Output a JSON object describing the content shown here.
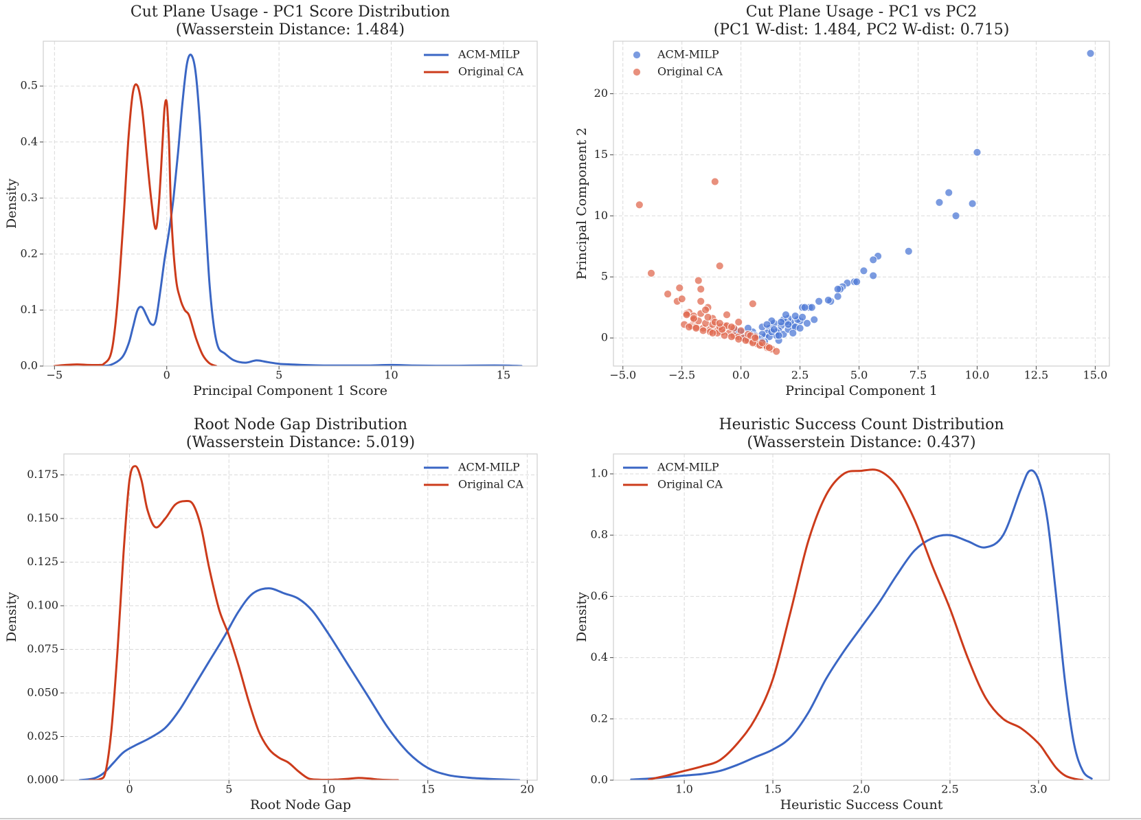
{
  "chart_data": [
    {
      "type": "line",
      "title": "Cut Plane Usage - PC1 Score Distribution",
      "subtitle": "(Wasserstein Distance: 1.484)",
      "xlabel": "Principal Component 1 Score",
      "ylabel": "Density",
      "xlim": [
        -5.5,
        16.5
      ],
      "ylim": [
        0,
        0.58
      ],
      "xticks": [
        -5,
        0,
        5,
        10,
        15
      ],
      "xtick_labels": [
        "−5",
        "0",
        "5",
        "10",
        "15"
      ],
      "yticks": [
        0,
        0.1,
        0.2,
        0.3,
        0.4,
        0.5
      ],
      "ytick_labels": [
        "0.0",
        "0.1",
        "0.2",
        "0.3",
        "0.4",
        "0.5"
      ],
      "legend_position": "top-right",
      "series": [
        {
          "name": "ACM-MILP",
          "color": "#3a66c4",
          "x": [
            -3,
            -2.5,
            -2,
            -1.7,
            -1.5,
            -1.3,
            -1.1,
            -0.9,
            -0.7,
            -0.5,
            -0.3,
            -0.1,
            0.1,
            0.3,
            0.5,
            0.7,
            0.9,
            1.1,
            1.3,
            1.5,
            1.7,
            1.9,
            2.1,
            2.3,
            2.6,
            3.0,
            3.5,
            4.0,
            4.5,
            5.0,
            5.5,
            6.0,
            7.0,
            8.0,
            9.0,
            10.0,
            11.0,
            12.0,
            13.0,
            14.0,
            15.0,
            15.8
          ],
          "y": [
            0,
            0.002,
            0.015,
            0.04,
            0.07,
            0.1,
            0.105,
            0.09,
            0.075,
            0.08,
            0.13,
            0.19,
            0.24,
            0.3,
            0.38,
            0.47,
            0.54,
            0.555,
            0.52,
            0.42,
            0.28,
            0.15,
            0.07,
            0.033,
            0.022,
            0.01,
            0.006,
            0.01,
            0.007,
            0.004,
            0.003,
            0.002,
            0.001,
            0.001,
            0.001,
            0.002,
            0.001,
            0.0005,
            0.0005,
            0.001,
            0.001,
            0
          ]
        },
        {
          "name": "Original CA",
          "color": "#cc3b1b",
          "x": [
            -5,
            -4.5,
            -4,
            -3.5,
            -3,
            -2.8,
            -2.5,
            -2.3,
            -2.1,
            -1.9,
            -1.7,
            -1.5,
            -1.3,
            -1.1,
            -0.9,
            -0.7,
            -0.5,
            -0.35,
            -0.2,
            -0.1,
            0,
            0.1,
            0.2,
            0.4,
            0.6,
            0.8,
            1.0,
            1.3,
            1.6,
            1.9,
            2.2
          ],
          "y": [
            0,
            0.002,
            0.003,
            0.002,
            0.002,
            0.004,
            0.02,
            0.07,
            0.16,
            0.28,
            0.41,
            0.49,
            0.5,
            0.46,
            0.38,
            0.3,
            0.245,
            0.29,
            0.39,
            0.46,
            0.47,
            0.4,
            0.27,
            0.16,
            0.12,
            0.1,
            0.09,
            0.05,
            0.02,
            0.005,
            0
          ]
        }
      ]
    },
    {
      "type": "scatter",
      "title": "Cut Plane Usage - PC1 vs PC2",
      "subtitle": "(PC1 W-dist: 1.484, PC2 W-dist: 0.715)",
      "xlabel": "Principal Component 1",
      "ylabel": "Principal Component 2",
      "xlim": [
        -5.4,
        15.6
      ],
      "ylim": [
        -2.3,
        24.3
      ],
      "xticks": [
        -5,
        -2.5,
        0,
        2.5,
        5,
        7.5,
        10,
        12.5,
        15
      ],
      "xtick_labels": [
        "−5.0",
        "−2.5",
        "0.0",
        "2.5",
        "5.0",
        "7.5",
        "10.0",
        "12.5",
        "15.0"
      ],
      "yticks": [
        0,
        5,
        10,
        15,
        20
      ],
      "ytick_labels": [
        "0",
        "5",
        "10",
        "15",
        "20"
      ],
      "legend_position": "top-left",
      "series": [
        {
          "name": "ACM-MILP",
          "color": "#4f7ad6",
          "x": [
            14.8,
            10.0,
            8.8,
            8.4,
            9.8,
            9.1,
            7.1,
            5.8,
            5.6,
            5.2,
            5.6,
            4.8,
            4.9,
            4.5,
            4.3,
            4.2,
            4.1,
            3.8,
            4.1,
            3.3,
            3.7,
            2.9,
            3.0,
            2.6,
            2.5,
            2.4,
            2.2,
            2.1,
            2.0,
            1.9,
            1.8,
            1.7,
            1.6,
            1.5,
            1.4,
            1.3,
            1.2,
            1.1,
            1.0,
            0.9,
            0.8,
            1.6,
            1.8,
            2.0,
            2.3,
            2.6,
            2.7,
            3.1,
            2.0,
            1.7,
            1.5,
            1.2,
            1.0,
            0.7,
            0.5,
            0.4,
            0.2,
            0.0,
            -0.2,
            0.3,
            0.6,
            0.9,
            1.9,
            2.3,
            2.8,
            2.5,
            2.2,
            1.6,
            1.3,
            0.1,
            0.9,
            1.4,
            1.1
          ],
          "y": [
            23.3,
            15.2,
            11.9,
            11.1,
            11.0,
            10.0,
            7.1,
            6.7,
            6.4,
            5.5,
            5.1,
            4.6,
            4.6,
            4.5,
            4.2,
            4.0,
            4.0,
            3.0,
            3.4,
            3.0,
            3.1,
            2.5,
            2.5,
            2.5,
            1.4,
            1.5,
            1.0,
            1.3,
            1.6,
            1.3,
            1.5,
            1.0,
            0.6,
            0.5,
            1.2,
            1.4,
            0.8,
            0.4,
            0.1,
            0.3,
            -0.1,
            -0.2,
            0.3,
            0.7,
            1.8,
            1.7,
            2.5,
            1.5,
            1.1,
            1.3,
            0.2,
            0.1,
            -0.3,
            0.0,
            0.5,
            0.3,
            0.0,
            0.5,
            0.6,
            0.8,
            0.2,
            -0.3,
            1.9,
            0.9,
            1.2,
            0.8,
            0.4,
            0.2,
            0.5,
            0.0,
            0.9,
            0.7,
            1.1
          ]
        },
        {
          "name": "Original CA",
          "color": "#e06b52",
          "x": [
            -4.3,
            -1.1,
            -3.8,
            -0.9,
            -3.1,
            -2.6,
            -1.8,
            -2.7,
            -1.7,
            -2.5,
            -2.2,
            -1.7,
            -2.3,
            -1.4,
            -2.0,
            -1.2,
            -0.6,
            -0.1,
            -0.7,
            0.5,
            -2.4,
            -2.1,
            -1.9,
            -1.6,
            -1.3,
            -1.0,
            -0.8,
            -0.5,
            -0.3,
            -0.1,
            0.1,
            0.3,
            0.5,
            0.7,
            0.9,
            1.1,
            1.3,
            1.5,
            -2.2,
            -1.9,
            -1.6,
            -1.3,
            -1.0,
            -0.7,
            -0.4,
            -0.1,
            0.2,
            0.5,
            0.8,
            1.1,
            -2.0,
            -1.8,
            -1.5,
            -1.2,
            -0.9,
            -0.6,
            -0.3,
            0.0,
            0.3,
            0.6,
            0.9,
            1.2,
            -1.7,
            -1.4,
            -1.1,
            -0.8,
            -2.3,
            -1.5,
            -0.9,
            0.4,
            -2.0,
            -1.2,
            -0.4,
            0.6
          ],
          "y": [
            10.9,
            12.8,
            5.3,
            5.9,
            3.6,
            4.1,
            4.7,
            3.0,
            4.0,
            3.2,
            2.1,
            3.0,
            2.0,
            2.5,
            1.8,
            1.6,
            1.9,
            1.3,
            1.0,
            2.8,
            1.1,
            1.0,
            0.9,
            0.8,
            0.7,
            0.6,
            0.5,
            0.4,
            0.2,
            0.1,
            0.0,
            -0.2,
            -0.3,
            -0.5,
            -0.6,
            -0.8,
            -0.9,
            -1.1,
            0.9,
            0.8,
            0.6,
            0.5,
            0.4,
            0.2,
            0.1,
            -0.1,
            -0.2,
            -0.4,
            -0.6,
            -0.7,
            1.5,
            1.4,
            1.2,
            1.1,
            0.9,
            1.0,
            0.8,
            0.6,
            0.3,
            0.1,
            -0.4,
            -0.8,
            2.0,
            1.7,
            1.3,
            0.7,
            1.9,
            2.3,
            1.2,
            0.2,
            1.6,
            0.4,
            0.9,
            0.0
          ]
        }
      ]
    },
    {
      "type": "line",
      "title": "Root Node Gap Distribution",
      "subtitle": "(Wasserstein Distance: 5.019)",
      "xlabel": "Root Node Gap",
      "ylabel": "Density",
      "xlim": [
        -3.3,
        20.5
      ],
      "ylim": [
        0,
        0.187
      ],
      "xticks": [
        0,
        5,
        10,
        15,
        20
      ],
      "xtick_labels": [
        "0",
        "5",
        "10",
        "15",
        "20"
      ],
      "yticks": [
        0,
        0.025,
        0.05,
        0.075,
        0.1,
        0.125,
        0.15,
        0.175
      ],
      "ytick_labels": [
        "0.000",
        "0.025",
        "0.050",
        "0.075",
        "0.100",
        "0.125",
        "0.150",
        "0.175"
      ],
      "legend_position": "top-right",
      "series": [
        {
          "name": "ACM-MILP",
          "color": "#3a66c4",
          "x": [
            -2.5,
            -1.8,
            -1.3,
            -0.8,
            -0.3,
            0.3,
            1.0,
            1.8,
            2.5,
            3.2,
            4.0,
            4.8,
            5.5,
            6.2,
            7.0,
            7.8,
            8.5,
            9.2,
            10.0,
            11.0,
            12.0,
            13.0,
            14.0,
            15.0,
            16.0,
            17.0,
            18.0,
            19.0,
            19.6
          ],
          "y": [
            0,
            0.001,
            0.004,
            0.01,
            0.016,
            0.02,
            0.024,
            0.03,
            0.04,
            0.053,
            0.068,
            0.083,
            0.097,
            0.107,
            0.11,
            0.107,
            0.104,
            0.097,
            0.084,
            0.066,
            0.048,
            0.03,
            0.016,
            0.007,
            0.003,
            0.0015,
            0.0008,
            0.0003,
            0
          ]
        },
        {
          "name": "Original CA",
          "color": "#cc3b1b",
          "x": [
            -2,
            -1.5,
            -1.2,
            -0.9,
            -0.6,
            -0.3,
            0.0,
            0.3,
            0.6,
            0.9,
            1.3,
            1.8,
            2.3,
            2.8,
            3.2,
            3.6,
            4.0,
            4.5,
            5.0,
            5.5,
            6.0,
            6.5,
            7.0,
            7.5,
            8.0,
            8.5,
            9.0,
            9.5,
            10.0,
            10.5,
            11.0,
            11.5,
            12.0,
            12.5,
            13.0,
            13.5
          ],
          "y": [
            0,
            0.0005,
            0.005,
            0.03,
            0.075,
            0.13,
            0.172,
            0.18,
            0.172,
            0.155,
            0.145,
            0.15,
            0.158,
            0.16,
            0.158,
            0.145,
            0.122,
            0.098,
            0.083,
            0.065,
            0.045,
            0.028,
            0.018,
            0.013,
            0.01,
            0.005,
            0.001,
            0.0003,
            0.0002,
            0.0004,
            0.0008,
            0.0013,
            0.001,
            0.0004,
            0.0001,
            0
          ]
        }
      ]
    },
    {
      "type": "line",
      "title": "Heuristic Success Count Distribution",
      "subtitle": "(Wasserstein Distance: 0.437)",
      "xlabel": "Heuristic Success Count",
      "ylabel": "Density",
      "xlim": [
        0.6,
        3.4
      ],
      "ylim": [
        0,
        1.065
      ],
      "xticks": [
        1.0,
        1.5,
        2.0,
        2.5,
        3.0
      ],
      "xtick_labels": [
        "1.0",
        "1.5",
        "2.0",
        "2.5",
        "3.0"
      ],
      "yticks": [
        0,
        0.2,
        0.4,
        0.6,
        0.8,
        1.0
      ],
      "ytick_labels": [
        "0.0",
        "0.2",
        "0.4",
        "0.6",
        "0.8",
        "1.0"
      ],
      "legend_position": "top-left",
      "series": [
        {
          "name": "ACM-MILP",
          "color": "#3a66c4",
          "x": [
            0.7,
            0.8,
            0.9,
            1.0,
            1.1,
            1.2,
            1.3,
            1.4,
            1.5,
            1.6,
            1.7,
            1.8,
            1.9,
            2.0,
            2.1,
            2.2,
            2.3,
            2.4,
            2.5,
            2.6,
            2.7,
            2.8,
            2.9,
            2.95,
            3.0,
            3.05,
            3.1,
            3.15,
            3.2,
            3.25,
            3.3
          ],
          "y": [
            0.002,
            0.005,
            0.01,
            0.015,
            0.02,
            0.03,
            0.05,
            0.075,
            0.1,
            0.14,
            0.22,
            0.33,
            0.42,
            0.5,
            0.58,
            0.67,
            0.75,
            0.79,
            0.8,
            0.78,
            0.76,
            0.8,
            0.95,
            1.01,
            0.98,
            0.85,
            0.6,
            0.32,
            0.12,
            0.03,
            0.005
          ]
        },
        {
          "name": "Original CA",
          "color": "#cc3b1b",
          "x": [
            0.8,
            0.9,
            1.0,
            1.1,
            1.2,
            1.3,
            1.4,
            1.5,
            1.6,
            1.7,
            1.8,
            1.9,
            2.0,
            2.1,
            2.2,
            2.3,
            2.4,
            2.5,
            2.6,
            2.7,
            2.8,
            2.9,
            3.0,
            3.05,
            3.1,
            3.15,
            3.2,
            3.25
          ],
          "y": [
            0.002,
            0.015,
            0.03,
            0.045,
            0.065,
            0.12,
            0.2,
            0.33,
            0.55,
            0.78,
            0.93,
            1.0,
            1.01,
            1.01,
            0.96,
            0.85,
            0.7,
            0.56,
            0.4,
            0.27,
            0.2,
            0.17,
            0.12,
            0.08,
            0.04,
            0.015,
            0.005,
            0
          ]
        }
      ]
    }
  ]
}
